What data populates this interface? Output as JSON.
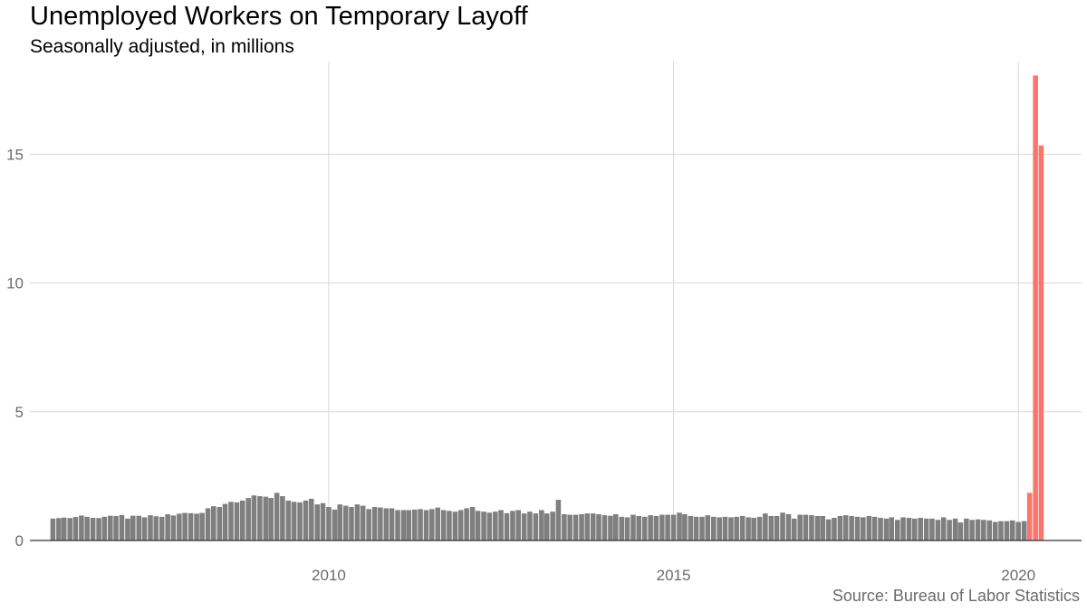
{
  "chart_data": {
    "type": "bar",
    "title": "Unemployed Workers on Temporary Layoff",
    "subtitle": "Seasonally adjusted, in millions",
    "caption": "Source: Bureau of Labor Statistics",
    "xlabel": "",
    "ylabel": "",
    "x_axis": {
      "type": "date",
      "range": [
        "2005-09-01",
        "2020-12-01"
      ],
      "ticks": [
        {
          "date": "2010-01-01",
          "label": "2010"
        },
        {
          "date": "2015-01-01",
          "label": "2015"
        },
        {
          "date": "2020-01-01",
          "label": "2020"
        }
      ]
    },
    "y_axis": {
      "range": [
        0,
        18.6
      ],
      "ticks": [
        0,
        5,
        10,
        15
      ]
    },
    "grid": true,
    "legend": "none",
    "colors": {
      "before_2020_03": "#7f7f7f",
      "from_2020_03": "#f8766d",
      "grid": "#d9d9d9",
      "baseline": "#333333"
    },
    "start_month": "2006-01",
    "values": [
      0.85,
      0.87,
      0.89,
      0.87,
      0.91,
      0.97,
      0.92,
      0.88,
      0.87,
      0.92,
      0.96,
      0.95,
      0.99,
      0.85,
      0.96,
      0.96,
      0.9,
      0.98,
      0.94,
      0.92,
      1.02,
      0.97,
      1.04,
      1.07,
      1.06,
      1.04,
      1.07,
      1.25,
      1.33,
      1.3,
      1.42,
      1.5,
      1.48,
      1.55,
      1.65,
      1.75,
      1.72,
      1.7,
      1.65,
      1.85,
      1.72,
      1.55,
      1.5,
      1.48,
      1.55,
      1.62,
      1.4,
      1.45,
      1.3,
      1.2,
      1.4,
      1.35,
      1.3,
      1.4,
      1.35,
      1.22,
      1.3,
      1.28,
      1.25,
      1.25,
      1.18,
      1.18,
      1.18,
      1.2,
      1.22,
      1.18,
      1.22,
      1.28,
      1.18,
      1.15,
      1.12,
      1.18,
      1.25,
      1.3,
      1.15,
      1.12,
      1.08,
      1.12,
      1.18,
      1.06,
      1.15,
      1.18,
      1.05,
      1.12,
      1.05,
      1.18,
      1.05,
      1.12,
      1.58,
      1.02,
      1.0,
      1.0,
      1.02,
      1.05,
      1.05,
      1.02,
      0.98,
      0.96,
      1.02,
      0.92,
      0.9,
      1.0,
      0.95,
      0.92,
      0.98,
      0.95,
      1.0,
      1.0,
      1.0,
      1.08,
      1.02,
      0.95,
      0.92,
      0.92,
      0.98,
      0.92,
      0.9,
      0.92,
      0.9,
      0.92,
      0.95,
      0.9,
      0.88,
      0.92,
      1.05,
      0.95,
      0.95,
      1.08,
      1.02,
      0.85,
      1.0,
      1.0,
      0.98,
      0.95,
      0.95,
      0.82,
      0.88,
      0.95,
      0.98,
      0.95,
      0.92,
      0.9,
      0.95,
      0.92,
      0.88,
      0.85,
      0.9,
      0.8,
      0.9,
      0.88,
      0.85,
      0.88,
      0.85,
      0.85,
      0.8,
      0.9,
      0.8,
      0.85,
      0.7,
      0.85,
      0.8,
      0.82,
      0.8,
      0.78,
      0.72,
      0.75,
      0.75,
      0.78,
      0.72,
      0.75,
      1.85,
      18.06,
      15.34
    ]
  }
}
